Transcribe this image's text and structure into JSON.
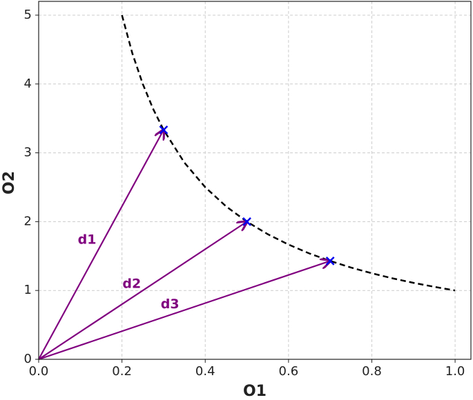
{
  "chart_data": {
    "type": "line",
    "x_label": "O1",
    "y_label": "O2",
    "xlim": [
      0,
      1.038
    ],
    "ylim": [
      0,
      5.2
    ],
    "xticks": [
      {
        "value": 0,
        "label": "0.0"
      },
      0.2,
      0.4,
      0.6,
      0.8,
      {
        "value": 1,
        "label": "1.0"
      }
    ],
    "yticks": [
      0,
      1,
      2,
      3,
      4,
      5
    ],
    "grid": true,
    "series": [
      {
        "color": "#000000",
        "dashed": true,
        "x": [
          0.2,
          0.225,
          0.25,
          0.275,
          0.3,
          0.35,
          0.4,
          0.45,
          0.5,
          0.55,
          0.6,
          0.65,
          0.7,
          0.75,
          0.8,
          0.85,
          0.9,
          0.95,
          1.0
        ],
        "values": [
          5,
          4.444,
          4,
          3.636,
          3.333,
          2.857,
          2.5,
          2.222,
          2,
          1.818,
          1.667,
          1.538,
          1.429,
          1.333,
          1.25,
          1.176,
          1.111,
          1.053,
          1
        ]
      }
    ],
    "points": {
      "color": "#0000ee",
      "x": [
        0.3,
        0.5,
        0.7
      ],
      "values": [
        3.333,
        2,
        1.429
      ]
    },
    "arrows": [
      {
        "label": "d1",
        "x0": 0,
        "y0": 0,
        "x": 0.3,
        "y": 3.333
      },
      {
        "label": "d2",
        "x0": 0,
        "y0": 0,
        "x": 0.5,
        "y": 2
      },
      {
        "label": "d3",
        "x0": 0,
        "y0": 0,
        "x": 0.7,
        "y": 1.429
      }
    ],
    "arrow_color": "#800080"
  }
}
